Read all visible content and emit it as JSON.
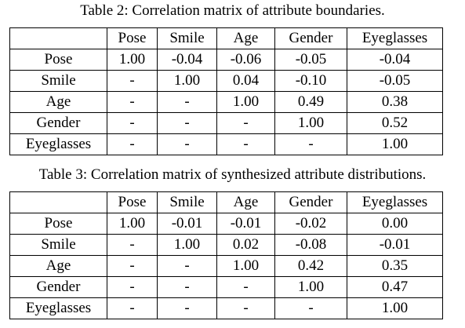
{
  "tables": [
    {
      "caption": "Table 2: Correlation matrix of attribute boundaries.",
      "headers": [
        "",
        "Pose",
        "Smile",
        "Age",
        "Gender",
        "Eyeglasses"
      ],
      "rows": [
        {
          "label": "Pose",
          "cells": [
            "1.00",
            "-0.04",
            "-0.06",
            "-0.05",
            "-0.04"
          ]
        },
        {
          "label": "Smile",
          "cells": [
            "-",
            "1.00",
            "0.04",
            "-0.10",
            "-0.05"
          ]
        },
        {
          "label": "Age",
          "cells": [
            "-",
            "-",
            "1.00",
            "0.49",
            "0.38"
          ]
        },
        {
          "label": "Gender",
          "cells": [
            "-",
            "-",
            "-",
            "1.00",
            "0.52"
          ]
        },
        {
          "label": "Eyeglasses",
          "cells": [
            "-",
            "-",
            "-",
            "-",
            "1.00"
          ]
        }
      ]
    },
    {
      "caption": "Table 3: Correlation matrix of synthesized attribute distributions.",
      "headers": [
        "",
        "Pose",
        "Smile",
        "Age",
        "Gender",
        "Eyeglasses"
      ],
      "rows": [
        {
          "label": "Pose",
          "cells": [
            "1.00",
            "-0.01",
            "-0.01",
            "-0.02",
            "0.00"
          ]
        },
        {
          "label": "Smile",
          "cells": [
            "-",
            "1.00",
            "0.02",
            "-0.08",
            "-0.01"
          ]
        },
        {
          "label": "Age",
          "cells": [
            "-",
            "-",
            "1.00",
            "0.42",
            "0.35"
          ]
        },
        {
          "label": "Gender",
          "cells": [
            "-",
            "-",
            "-",
            "1.00",
            "0.47"
          ]
        },
        {
          "label": "Eyeglasses",
          "cells": [
            "-",
            "-",
            "-",
            "-",
            "1.00"
          ]
        }
      ]
    }
  ]
}
